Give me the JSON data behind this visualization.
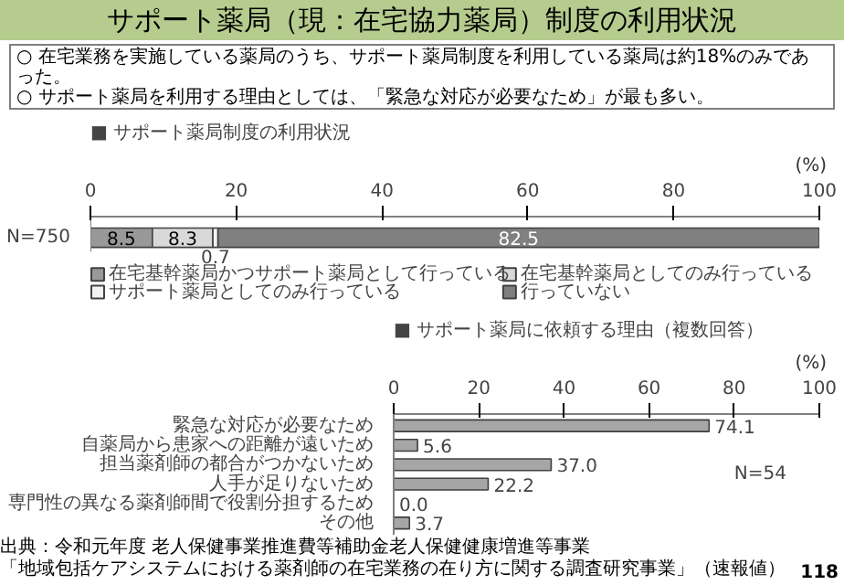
{
  "chart_data": [
    {
      "type": "bar",
      "orientation": "horizontal",
      "stacked": true,
      "title": "■ サポート薬局制度の利用状況",
      "annotations": [
        "サポート薬局（現：在宅協力薬局）制度の利用状況",
        "○ 在宅業務を実施している薬局のうち、サポート薬局制度を利用している薬局は約18%のみであった。",
        "○ サポート薬局を利用する理由としては、「緊急な対応が必要なため」が最も多い。"
      ],
      "categories": [
        "N=750"
      ],
      "xlabel": "(%)",
      "xlim": [
        0,
        100
      ],
      "xticks": [
        0,
        20,
        40,
        60,
        80,
        100
      ],
      "series": [
        {
          "name": "在宅基幹薬局かつサポート薬局として行っている",
          "color": "#999999",
          "values": [
            8.5
          ]
        },
        {
          "name": "在宅基幹薬局としてのみ行っている",
          "color": "#d9d9d9",
          "values": [
            8.3
          ]
        },
        {
          "name": "サポート薬局としてのみ行っている",
          "color": "#f2f2f2",
          "values": [
            0.7
          ]
        },
        {
          "name": "行っていない",
          "color": "#808080",
          "values": [
            82.5
          ]
        }
      ],
      "data_labels": true,
      "legend": "bottom",
      "grid": false
    },
    {
      "type": "bar",
      "orientation": "horizontal",
      "title": "■ サポート薬局に依頼する理由（複数回答）",
      "categories": [
        "緊急な対応が必要なため",
        "自薬局から患家への距離が遠いため",
        "担当薬剤師の都合がつかないため",
        "人手が足りないため",
        "専門性の異なる薬剤師間で役割分担するため",
        "その他"
      ],
      "values": [
        74.1,
        5.6,
        37.0,
        22.2,
        0.0,
        3.7
      ],
      "value_labels": [
        "74.1",
        "5.6",
        "37.0",
        "22.2",
        "0.0",
        "3.7"
      ],
      "color": "#a6a6a6",
      "xlabel": "(%)",
      "xlim": [
        0,
        100
      ],
      "xticks": [
        0,
        20,
        40,
        60,
        80,
        100
      ],
      "grid": false,
      "annotations": [
        "N=54",
        "出典：令和元年度 老人保健事業推進費等補助金老人保健健康増進等事業",
        "「地域包括ケアシステムにおける薬剤師の在宅業務の在り方に関する調査研究事業」（速報値）",
        "118"
      ]
    }
  ]
}
